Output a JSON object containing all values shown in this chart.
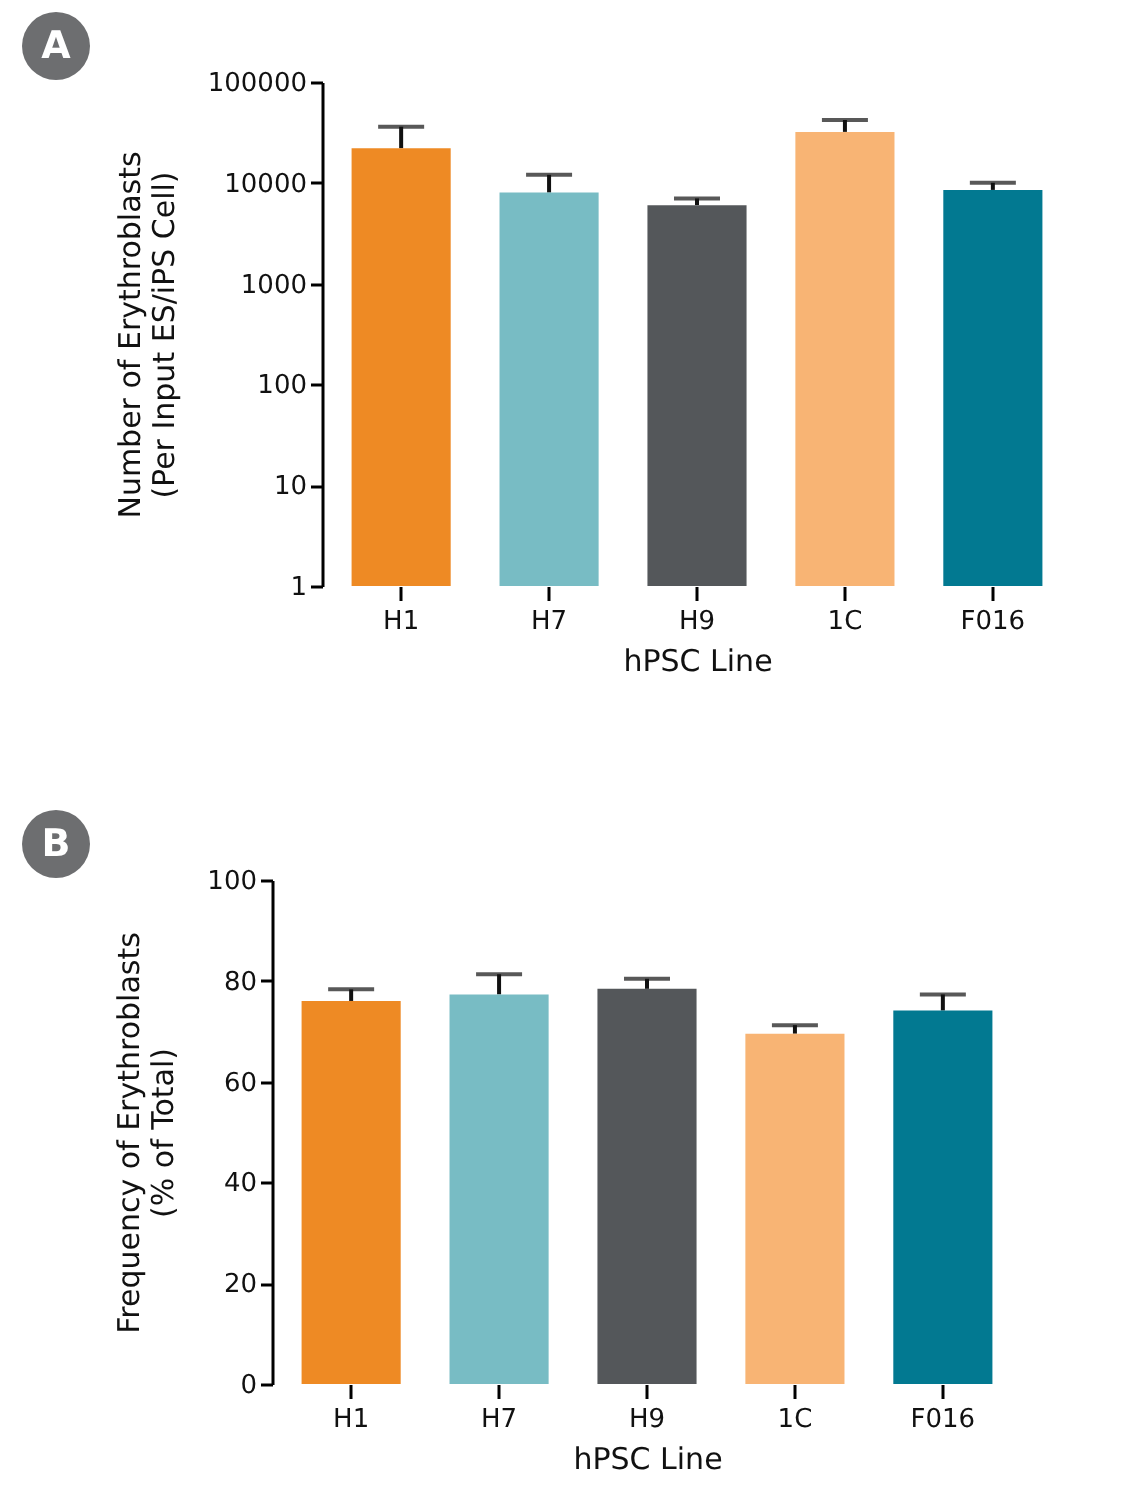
{
  "chart_data": [
    {
      "type": "bar",
      "title": "A",
      "xlabel": "hPSC Line",
      "ylabel": "Number of Erythroblasts\n(Per Input ES/iPS Cell)",
      "categories": [
        "H1",
        "H7",
        "H9",
        "1C",
        "F016"
      ],
      "values": [
        22000,
        8000,
        6000,
        32000,
        8500
      ],
      "errors": [
        [
          22000,
          36000
        ],
        [
          8000,
          12000
        ],
        [
          6000,
          7000
        ],
        [
          32000,
          42000
        ],
        [
          8500,
          10000
        ]
      ],
      "colors": [
        "#ee8a24",
        "#78bcc4",
        "#54575a",
        "#f8b474",
        "#027991"
      ],
      "log": "y",
      "ylim": [
        1,
        100000
      ],
      "yticks": [
        1,
        10,
        100,
        1000,
        10000,
        100000
      ]
    },
    {
      "type": "bar",
      "title": "B",
      "xlabel": "hPSC Line",
      "ylabel": "Frequency of Erythroblasts\n(% of Total)",
      "categories": [
        "H1",
        "H7",
        "H9",
        "1C",
        "F016"
      ],
      "values": [
        76,
        77.3,
        78.4,
        69.5,
        74.1
      ],
      "errors": [
        [
          76,
          78.3
        ],
        [
          77.3,
          81.3
        ],
        [
          78.4,
          80.4
        ],
        [
          69.5,
          71.2
        ],
        [
          74.1,
          77.3
        ]
      ],
      "colors": [
        "#ee8a24",
        "#78bcc4",
        "#54575a",
        "#f8b474",
        "#027991"
      ],
      "ylim": [
        0,
        100
      ],
      "yticks": [
        0,
        20,
        40,
        60,
        80,
        100
      ]
    }
  ]
}
